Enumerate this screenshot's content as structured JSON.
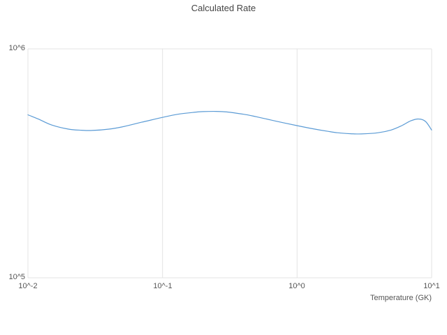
{
  "chart": {
    "title": "Calculated Rate",
    "line_color": "#5b9bd5",
    "grid_color": "#e3e3e3",
    "text_color": "#555555",
    "x_axis": {
      "label": "Temperature (GK)",
      "scale": "log",
      "tick_labels": [
        "10^-2",
        "10^-1",
        "10^0",
        "10^1"
      ]
    },
    "y_axis": {
      "label": "",
      "scale": "log",
      "tick_labels": [
        "10^5",
        "10^6"
      ]
    }
  },
  "chart_data": {
    "type": "line",
    "title": "Calculated Rate",
    "xlabel": "Temperature (GK)",
    "ylabel": "",
    "x_scale": "log",
    "y_scale": "log",
    "xlim": [
      0.01,
      10
    ],
    "ylim": [
      100000,
      1000000
    ],
    "grid": true,
    "legend": false,
    "series": [
      {
        "name": "Calculated Rate",
        "x": [
          0.01,
          0.012,
          0.015,
          0.02,
          0.025,
          0.03,
          0.04,
          0.05,
          0.07,
          0.1,
          0.13,
          0.17,
          0.2,
          0.25,
          0.3,
          0.4,
          0.5,
          0.7,
          1.0,
          1.3,
          1.7,
          2.0,
          2.5,
          3.0,
          4.0,
          5.0,
          6.0,
          7.0,
          8.0,
          9.0,
          10.0
        ],
        "y": [
          515000,
          493000,
          465000,
          446000,
          441000,
          440000,
          446000,
          456000,
          478000,
          502000,
          518000,
          528000,
          532000,
          533000,
          530000,
          518000,
          505000,
          483000,
          462000,
          448000,
          436000,
          430000,
          426000,
          425000,
          430000,
          442000,
          462000,
          485000,
          494000,
          482000,
          442000
        ]
      }
    ]
  }
}
